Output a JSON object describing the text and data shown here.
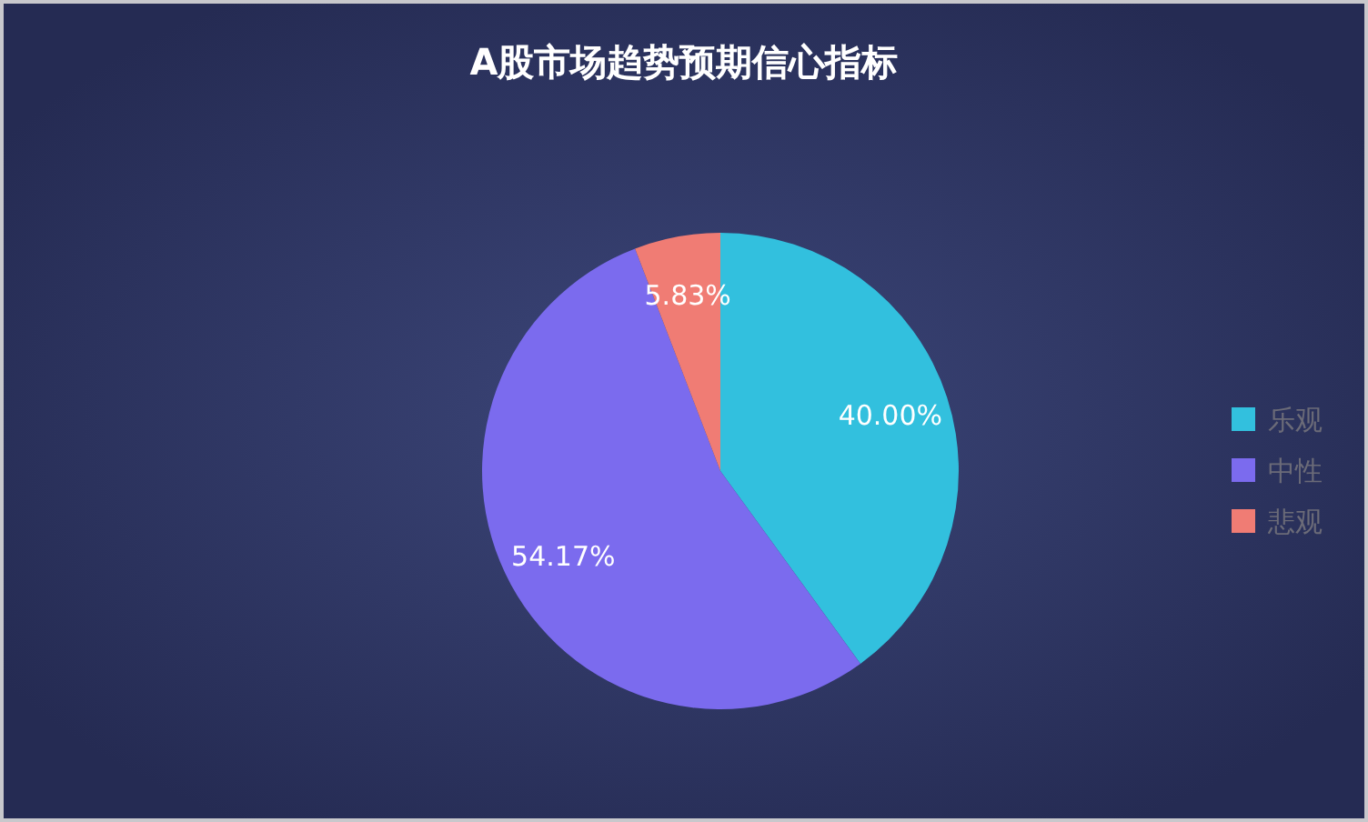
{
  "chart_data": {
    "type": "pie",
    "title": "A股市场趋势预期信心指标",
    "categories": [
      "乐观",
      "中性",
      "悲观"
    ],
    "values": [
      40,
      54.17,
      5.83
    ],
    "value_labels": [
      "40.00%",
      "54.17%",
      "5.83%"
    ],
    "colors": [
      "#32c0de",
      "#7b6bee",
      "#f07c74"
    ],
    "legend": "right"
  }
}
